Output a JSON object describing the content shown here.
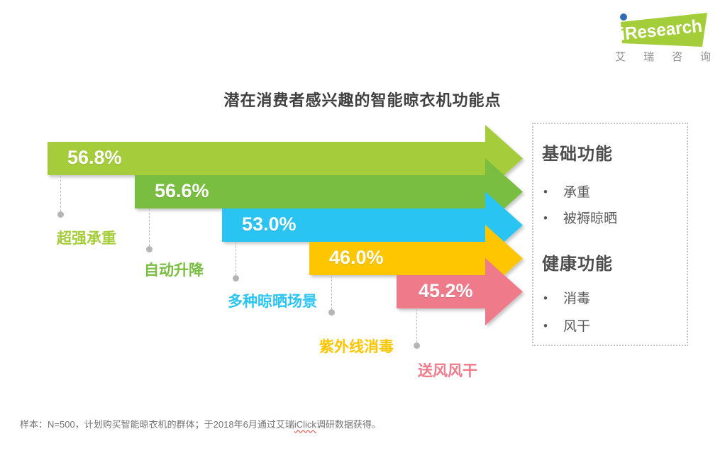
{
  "logo": {
    "brand": "iResearch",
    "brand_cn": "艾瑞咨询",
    "green": "#a4cd3a",
    "blue_dot": "#2e6db4",
    "text_color": "#ffffff",
    "cn_color": "#8b8b8b"
  },
  "chart_data": {
    "type": "bar",
    "title": "潜在消费者感兴趣的智能晾衣机功能点",
    "orientation": "horizontal",
    "style": "staircase-arrow-bars",
    "unit": "%",
    "categories": [
      "超强承重",
      "自动升降",
      "多种晾晒场景",
      "紫外线消毒",
      "送风风干"
    ],
    "values": [
      56.8,
      56.6,
      53.0,
      46.0,
      45.2
    ],
    "bars": [
      {
        "label": "超强承重",
        "value": 56.8,
        "value_label": "56.8%",
        "color": "#a5cd3a"
      },
      {
        "label": "自动升降",
        "value": 56.6,
        "value_label": "56.6%",
        "color": "#79be41"
      },
      {
        "label": "多种晾晒场景",
        "value": 53.0,
        "value_label": "53.0%",
        "color": "#2bc4f3"
      },
      {
        "label": "紫外线消毒",
        "value": 46.0,
        "value_label": "46.0%",
        "color": "#fdc600"
      },
      {
        "label": "送风风干",
        "value": 45.2,
        "value_label": "45.2%",
        "color": "#ef7a8a"
      }
    ],
    "legend_position": "right",
    "grid": false
  },
  "legend": {
    "groups": [
      {
        "heading": "基础功能",
        "items": [
          "承重",
          "被褥晾晒"
        ]
      },
      {
        "heading": "健康功能",
        "items": [
          "消毒",
          "风干"
        ]
      }
    ]
  },
  "footnote": {
    "prefix": "样本：N=500，计划购买智能晾衣机的群体；于2018年6月通过艾瑞",
    "highlight": "iClick",
    "suffix": "调研数据获得。"
  }
}
